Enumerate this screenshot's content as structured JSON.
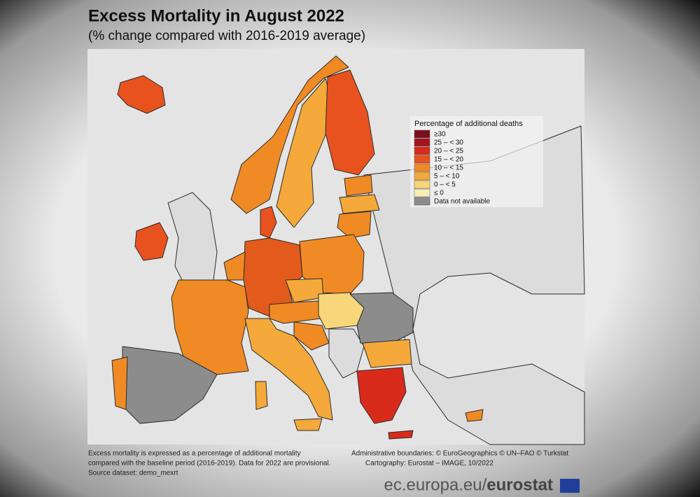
{
  "title": "Excess Mortality in August 2022",
  "subtitle": "(% change compared with 2016-2019 average)",
  "legend": {
    "title": "Percentage of additional deaths",
    "items": [
      {
        "label": "≥30",
        "color": "#7a0f1e"
      },
      {
        "label": "25 – < 30",
        "color": "#a3151c"
      },
      {
        "label": "20 – < 25",
        "color": "#d92b1c"
      },
      {
        "label": "15 – < 20",
        "color": "#e8521e"
      },
      {
        "label": "10 – < 15",
        "color": "#f08a24"
      },
      {
        "label": "5 – < 10",
        "color": "#f4a93a"
      },
      {
        "label": "0 – < 5",
        "color": "#f7d77a"
      },
      {
        "label": "≤ 0",
        "color": "#faeeb8"
      },
      {
        "label": "Data not available",
        "color": "#8c8c8c"
      }
    ]
  },
  "footnote": [
    "Excess mortality is expressed as a percentage of additional mortality",
    "compared with the baseline period (2016-2019). Data for 2022 are provisional.",
    "Source dataset: demo_mexrt"
  ],
  "credits": [
    "Administrative boundaries: © EuroGeographics © UN–FAO © Turkstat",
    "Cartography: Eurostat – IMAGE, 10/2022"
  ],
  "brand": {
    "url": "ec.europa.eu/",
    "name": "eurostat"
  }
}
